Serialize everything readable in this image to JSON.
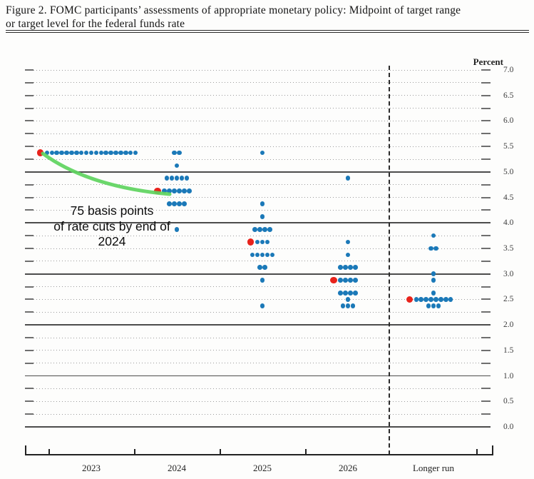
{
  "header": {
    "title_line1": "Figure 2.  FOMC participants’ assessments of appropriate monetary policy:  Midpoint of target range",
    "title_line2": "or target level for the federal funds rate"
  },
  "annotation": {
    "lines": [
      "75 basis points",
      "of rate cuts by end of",
      "2024"
    ]
  },
  "chart_data": {
    "type": "scatter",
    "title": "FOMC participants' assessments of appropriate monetary policy: Midpoint of target range or target level for the federal funds rate",
    "ylabel": "Percent",
    "percent_label": "Percent",
    "ylim": [
      0.0,
      7.0
    ],
    "grid_step": 0.25,
    "solid_gridlines_at": [
      0,
      1,
      2,
      3,
      4,
      5
    ],
    "y_tick_labels": [
      "7.0",
      "6.5",
      "6.0",
      "5.5",
      "5.0",
      "4.5",
      "4.0",
      "3.5",
      "3.0",
      "2.5",
      "2.0",
      "1.5",
      "1.0",
      "0.5",
      "0.0"
    ],
    "categories": [
      "2023",
      "2024",
      "2025",
      "2026",
      "Longer run"
    ],
    "columns": [
      {
        "label": "2023",
        "median": 5.375,
        "dots": [
          {
            "value": 5.375,
            "count": 19
          }
        ]
      },
      {
        "label": "2024",
        "median": 4.625,
        "dots": [
          {
            "value": 5.375,
            "count": 2
          },
          {
            "value": 5.125,
            "count": 1
          },
          {
            "value": 4.875,
            "count": 5
          },
          {
            "value": 4.625,
            "count": 6
          },
          {
            "value": 4.375,
            "count": 4
          },
          {
            "value": 3.875,
            "count": 1
          }
        ]
      },
      {
        "label": "2025",
        "median": 3.625,
        "dots": [
          {
            "value": 5.375,
            "count": 1
          },
          {
            "value": 4.375,
            "count": 1
          },
          {
            "value": 4.125,
            "count": 1
          },
          {
            "value": 3.875,
            "count": 4
          },
          {
            "value": 3.625,
            "count": 3
          },
          {
            "value": 3.375,
            "count": 5
          },
          {
            "value": 3.125,
            "count": 2
          },
          {
            "value": 2.875,
            "count": 1
          },
          {
            "value": 2.375,
            "count": 1
          }
        ]
      },
      {
        "label": "2026",
        "median": 2.875,
        "dots": [
          {
            "value": 4.875,
            "count": 1
          },
          {
            "value": 3.625,
            "count": 1
          },
          {
            "value": 3.375,
            "count": 1
          },
          {
            "value": 3.125,
            "count": 4
          },
          {
            "value": 2.875,
            "count": 4
          },
          {
            "value": 2.625,
            "count": 4
          },
          {
            "value": 2.5,
            "count": 1
          },
          {
            "value": 2.375,
            "count": 3
          }
        ]
      },
      {
        "label": "Longer run",
        "median": 2.5,
        "dots": [
          {
            "value": 3.75,
            "count": 1
          },
          {
            "value": 3.5,
            "count": 2
          },
          {
            "value": 3.0,
            "count": 1
          },
          {
            "value": 2.875,
            "count": 1
          },
          {
            "value": 2.625,
            "count": 1
          },
          {
            "value": 2.5,
            "count": 8
          },
          {
            "value": 2.375,
            "count": 3
          }
        ]
      }
    ],
    "legend": "Red dots mark the median projection; green arrow annotates implied cuts from end-2023 to end-2024",
    "colors": {
      "dot": "#1b79b8",
      "median_marker": "#e8231c",
      "arrow": "#5ed45e",
      "grid_dotted": "#9b9b9b",
      "grid_solid": "#4c4c4c",
      "axis": "#222222"
    }
  }
}
